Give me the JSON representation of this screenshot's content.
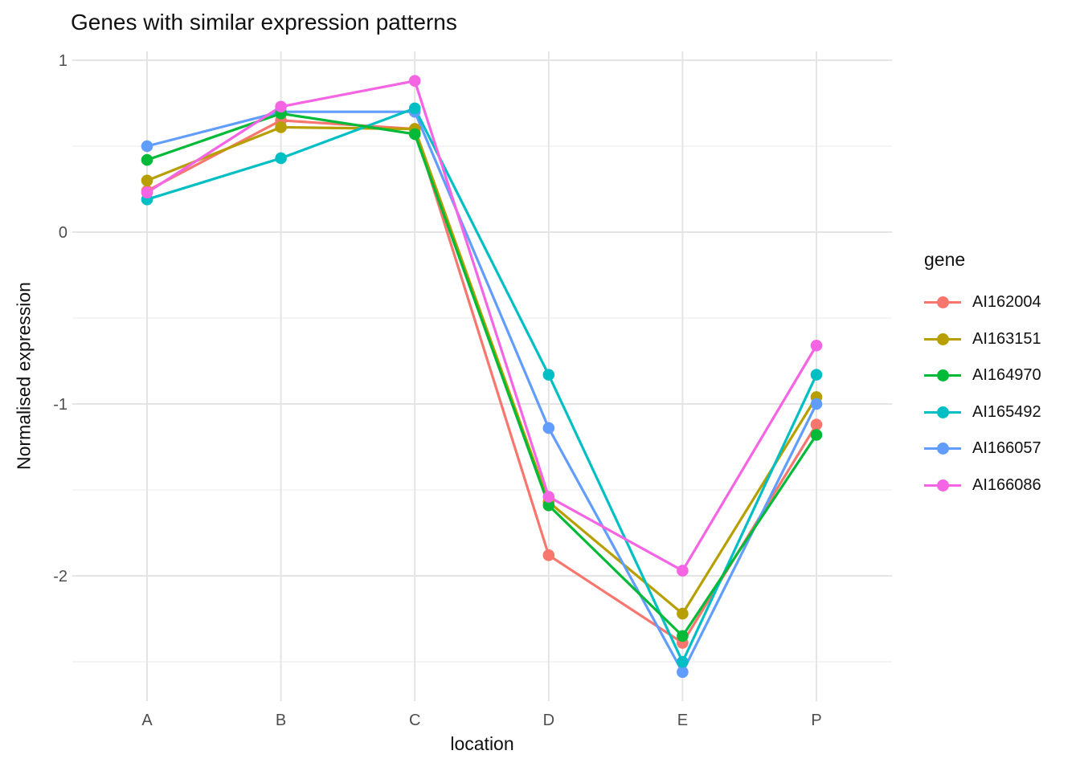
{
  "title": "Genes with similar expression patterns",
  "chart_data": {
    "type": "line",
    "title": "Genes with similar expression patterns",
    "xlabel": "location",
    "ylabel": "Normalised expression",
    "categories": [
      "A",
      "B",
      "C",
      "D",
      "E",
      "P"
    ],
    "series": [
      {
        "name": "AI162004",
        "color": "#F8766D",
        "values": [
          0.24,
          0.65,
          0.6,
          -1.88,
          -2.39,
          -1.12
        ]
      },
      {
        "name": "AI163151",
        "color": "#B79F00",
        "values": [
          0.3,
          0.61,
          0.6,
          -1.57,
          -2.22,
          -0.96
        ]
      },
      {
        "name": "AI164970",
        "color": "#00BA38",
        "values": [
          0.42,
          0.69,
          0.57,
          -1.59,
          -2.35,
          -1.18
        ]
      },
      {
        "name": "AI165492",
        "color": "#00BFC4",
        "values": [
          0.19,
          0.43,
          0.72,
          -0.83,
          -2.5,
          -0.83
        ]
      },
      {
        "name": "AI166057",
        "color": "#619CFF",
        "values": [
          0.5,
          0.7,
          0.7,
          -1.14,
          -2.56,
          -1.0
        ]
      },
      {
        "name": "AI166086",
        "color": "#F564E3",
        "values": [
          0.23,
          0.73,
          0.88,
          -1.54,
          -1.97,
          -0.66
        ]
      }
    ],
    "y_major_ticks": [
      1,
      0,
      -1,
      -2
    ],
    "y_minor_ticks": [
      0.5,
      -0.5,
      -1.5,
      -2.5
    ],
    "y_tick_labels": [
      "1",
      "0",
      "-1",
      "-2"
    ],
    "ylim": [
      -2.73,
      1.05
    ],
    "grid": "major+minor horizontal, major vertical at categories",
    "legend_title": "gene",
    "legend_position": "right",
    "tick_label_color": "#4D4D4D",
    "grid_major_color": "#E4E4E4",
    "grid_minor_color": "#F0F0F0",
    "background_color": "#FFFFFF"
  }
}
